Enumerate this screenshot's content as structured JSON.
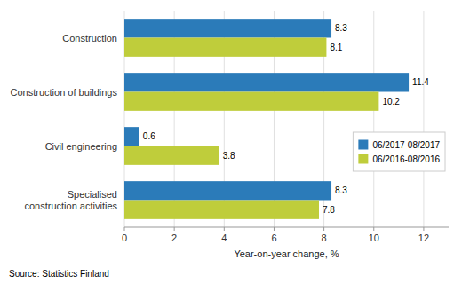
{
  "chart_data": {
    "type": "bar",
    "orientation": "horizontal",
    "categories": [
      "Specialised\nconstruction activities",
      "Civil engineering",
      "Construction of buildings",
      "Construction"
    ],
    "series": [
      {
        "name": "06/2017-08/2017",
        "color": "#2B7BB9",
        "values": [
          8.3,
          0.6,
          11.4,
          8.3
        ]
      },
      {
        "name": "06/2016-08/2016",
        "color": "#BFCD3B",
        "values": [
          7.8,
          3.8,
          10.2,
          8.1
        ]
      }
    ],
    "xlabel": "Year-on-year change, %",
    "xlim": [
      0,
      13
    ],
    "xticks": [
      0,
      2,
      4,
      6,
      8,
      10,
      12
    ],
    "annotations": [
      "Source: Statistics Finland"
    ],
    "grid": true,
    "legend": "lower right",
    "data_labels": true
  }
}
